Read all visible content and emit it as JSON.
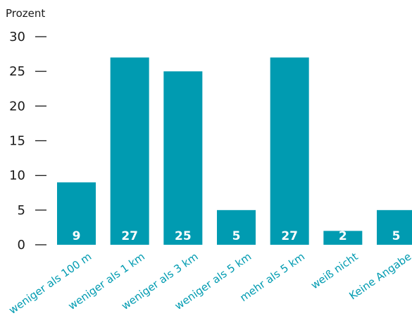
{
  "chart_data": {
    "type": "bar",
    "ylabel": "Prozent",
    "xlabel": "",
    "categories": [
      "weniger als 100 m",
      "weniger als 1 km",
      "weniger als 3 km",
      "weniger als 5 km",
      "mehr als 5 km",
      "weiß nicht",
      "Keine Angabe"
    ],
    "values": [
      9,
      27,
      25,
      5,
      27,
      2,
      5
    ],
    "data_labels": [
      "9",
      "27",
      "25",
      "5",
      "27",
      "2",
      "5"
    ],
    "ylim": [
      0,
      30
    ],
    "yticks": [
      "0",
      "5",
      "10",
      "15",
      "20",
      "25",
      "30"
    ],
    "grid": false,
    "legend": "none",
    "colors": {
      "bar": "#009bb1",
      "category_label": "#009bb1",
      "axis_text": "#1a1a1a"
    }
  }
}
